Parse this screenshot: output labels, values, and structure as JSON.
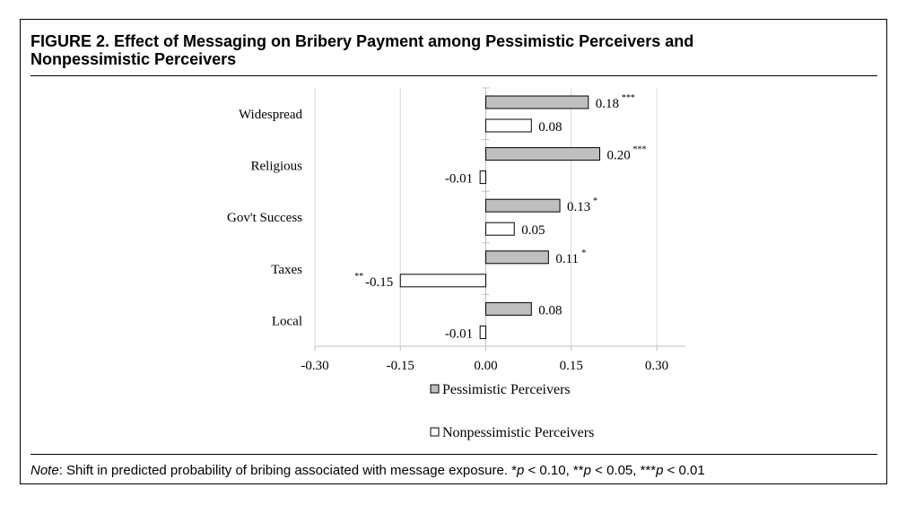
{
  "figure": {
    "title_line1": "FIGURE 2.   Effect of Messaging on Bribery Payment among Pessimistic Perceivers and",
    "title_line2": "Nonpessimistic Perceivers",
    "note_label": "Note",
    "note_text": ": Shift in predicted probability of bribing associated with message exposure. *",
    "note_p1": "p",
    "note_t1": " < 0.10, **",
    "note_p2": "p",
    "note_t2": " < 0.05, ***",
    "note_p3": "p",
    "note_t3": " < 0.01"
  },
  "chart_data": {
    "type": "bar",
    "orientation": "horizontal",
    "categories": [
      "Widespread",
      "Religious",
      "Gov't Success",
      "Taxes",
      "Local"
    ],
    "series": [
      {
        "name": "Pessimistic Perceivers",
        "values": [
          0.18,
          0.2,
          0.13,
          0.11,
          0.08
        ],
        "labels": [
          "0.18",
          "0.20",
          "0.13",
          "0.11",
          "0.08"
        ],
        "significance": [
          "***",
          "***",
          "*",
          "*",
          ""
        ],
        "fill": "#bfbfbf"
      },
      {
        "name": "Nonpessimistic Perceivers",
        "values": [
          0.08,
          -0.01,
          0.05,
          -0.15,
          -0.01
        ],
        "labels": [
          "0.08",
          "-0.01",
          "0.05",
          "-0.15",
          "-0.01"
        ],
        "significance": [
          "",
          "",
          "",
          "**",
          ""
        ],
        "fill": "#ffffff"
      }
    ],
    "xlim": [
      -0.3,
      0.3
    ],
    "xticks": [
      "-0.30",
      "-0.15",
      "0.00",
      "0.15",
      "0.30"
    ],
    "xtick_values": [
      -0.3,
      -0.15,
      0.0,
      0.15,
      0.3
    ],
    "grid": true,
    "legend_position": "bottom"
  },
  "colors": {
    "bar_stroke": "#000000",
    "grid": "#d9d9d9",
    "axis": "#bfbfbf"
  }
}
